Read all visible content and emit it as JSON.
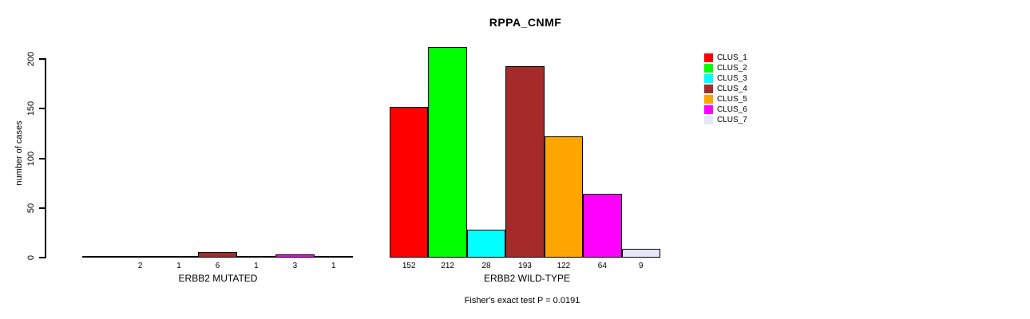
{
  "title": "RPPA_CNMF",
  "y_axis": {
    "label": "number of cases"
  },
  "footer": "Fisher's exact test P = 0.0191",
  "chart_data": {
    "type": "bar",
    "title": "RPPA_CNMF",
    "ylabel": "number of cases",
    "ylim": [
      0,
      200
    ],
    "y_ticks": [
      0,
      50,
      100,
      150,
      200
    ],
    "grid": false,
    "legend_position": "right",
    "categories": [
      "ERBB2 MUTATED",
      "ERBB2 WILD-TYPE"
    ],
    "series": [
      {
        "name": "CLUS_1",
        "color": "#FF0000",
        "values": [
          0,
          152
        ]
      },
      {
        "name": "CLUS_2",
        "color": "#00FF00",
        "values": [
          2,
          212
        ]
      },
      {
        "name": "CLUS_3",
        "color": "#00FFFF",
        "values": [
          1,
          28
        ]
      },
      {
        "name": "CLUS_4",
        "color": "#A52A2A",
        "values": [
          6,
          193
        ]
      },
      {
        "name": "CLUS_5",
        "color": "#FFA500",
        "values": [
          1,
          122
        ]
      },
      {
        "name": "CLUS_6",
        "color": "#FF00FF",
        "values": [
          3,
          64
        ]
      },
      {
        "name": "CLUS_7",
        "color": "#E6E6FA",
        "values": [
          1,
          9
        ]
      }
    ],
    "bar_value_labels": [
      [
        "",
        "2",
        "1",
        "6",
        "1",
        "3",
        "1"
      ],
      [
        "152",
        "212",
        "28",
        "193",
        "122",
        "64",
        "9"
      ]
    ],
    "annotation": "Fisher's exact test P = 0.0191"
  }
}
